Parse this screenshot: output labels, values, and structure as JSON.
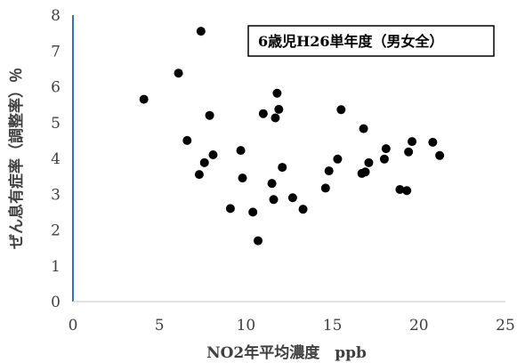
{
  "chart_data": {
    "type": "scatter",
    "title": "6歳児H26単年度（男女全）",
    "xlabel": "NO2年平均濃度　ppb",
    "ylabel": "ぜん息有症率（調整率）％",
    "xlim": [
      0,
      25
    ],
    "ylim": [
      0,
      8
    ],
    "x_ticks": [
      "0",
      "5",
      "10",
      "15",
      "20",
      "25"
    ],
    "y_ticks": [
      "0",
      "1",
      "2",
      "3",
      "4",
      "5",
      "6",
      "7",
      "8"
    ],
    "grid": false,
    "legend": "top-right",
    "marker_color": "#000000",
    "axis_color": "#2e75b6",
    "points": [
      {
        "x": 4.1,
        "y": 5.65
      },
      {
        "x": 6.1,
        "y": 6.38
      },
      {
        "x": 6.6,
        "y": 4.5
      },
      {
        "x": 7.4,
        "y": 7.55
      },
      {
        "x": 7.3,
        "y": 3.55
      },
      {
        "x": 7.6,
        "y": 3.88
      },
      {
        "x": 7.9,
        "y": 5.2
      },
      {
        "x": 8.1,
        "y": 4.1
      },
      {
        "x": 9.1,
        "y": 2.6
      },
      {
        "x": 9.7,
        "y": 4.22
      },
      {
        "x": 9.8,
        "y": 3.45
      },
      {
        "x": 10.4,
        "y": 2.5
      },
      {
        "x": 10.7,
        "y": 1.7
      },
      {
        "x": 11.0,
        "y": 5.25
      },
      {
        "x": 11.5,
        "y": 3.3
      },
      {
        "x": 11.6,
        "y": 2.85
      },
      {
        "x": 11.7,
        "y": 5.13
      },
      {
        "x": 11.8,
        "y": 5.82
      },
      {
        "x": 11.9,
        "y": 5.37
      },
      {
        "x": 12.1,
        "y": 3.75
      },
      {
        "x": 12.7,
        "y": 2.9
      },
      {
        "x": 13.3,
        "y": 2.58
      },
      {
        "x": 14.6,
        "y": 3.17
      },
      {
        "x": 14.8,
        "y": 3.65
      },
      {
        "x": 15.3,
        "y": 3.98
      },
      {
        "x": 15.5,
        "y": 5.36
      },
      {
        "x": 16.7,
        "y": 3.58
      },
      {
        "x": 16.8,
        "y": 4.83
      },
      {
        "x": 16.9,
        "y": 3.62
      },
      {
        "x": 17.1,
        "y": 3.88
      },
      {
        "x": 18.0,
        "y": 3.98
      },
      {
        "x": 18.1,
        "y": 4.27
      },
      {
        "x": 18.9,
        "y": 3.13
      },
      {
        "x": 19.3,
        "y": 3.1
      },
      {
        "x": 19.4,
        "y": 4.18
      },
      {
        "x": 19.6,
        "y": 4.47
      },
      {
        "x": 20.8,
        "y": 4.45
      },
      {
        "x": 21.2,
        "y": 4.08
      }
    ]
  }
}
